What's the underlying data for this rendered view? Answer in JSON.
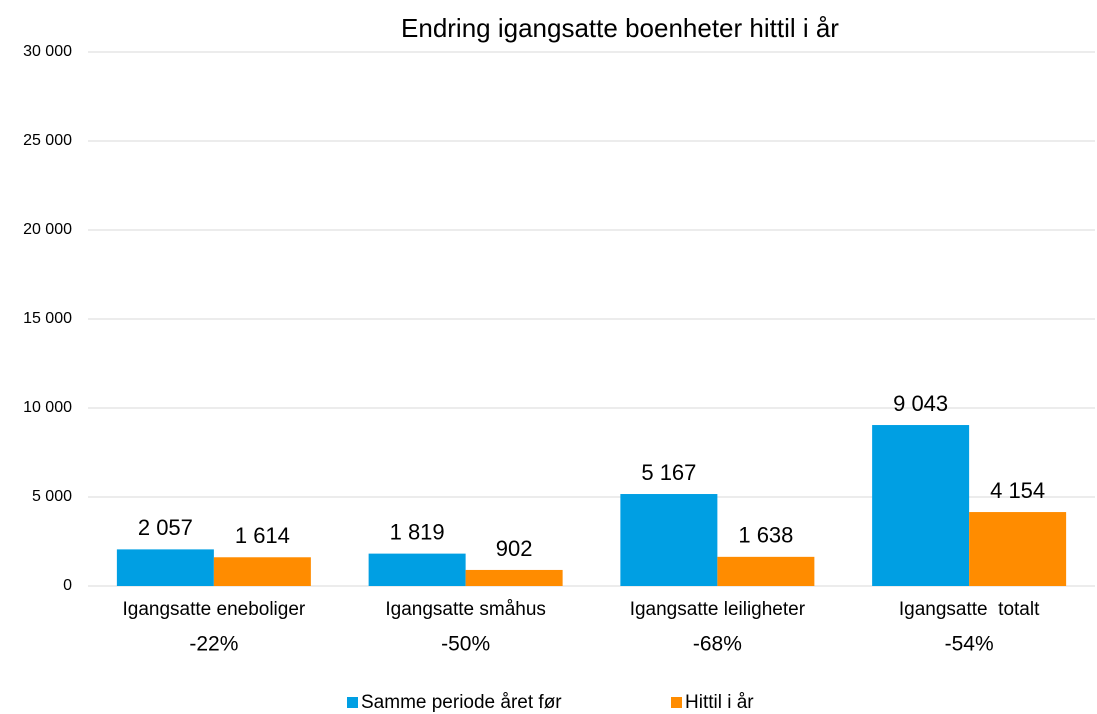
{
  "chart_data": {
    "type": "bar",
    "title": "Endring igangsatte boenheter hittil i år",
    "categories": [
      "Igangsatte eneboliger",
      "Igangsatte småhus",
      "Igangsatte leiligheter",
      "Igangsatte  totalt"
    ],
    "category_notes": [
      "-22%",
      "-50%",
      "-68%",
      "-54%"
    ],
    "series": [
      {
        "name": "Samme periode året før",
        "color": "#009fe3",
        "values": [
          2057,
          1819,
          5167,
          9043
        ],
        "value_labels": [
          "2 057",
          "1 819",
          "5 167",
          "9 043"
        ]
      },
      {
        "name": "Hittil i år",
        "color": "#ff8c00",
        "values": [
          1614,
          902,
          1638,
          4154
        ],
        "value_labels": [
          "1 614",
          "902",
          "1 638",
          "4 154"
        ]
      }
    ],
    "ylim": [
      0,
      30000
    ],
    "yticks": [
      0,
      {
        "value": 5000,
        "label": "5 000"
      },
      {
        "value": 10000,
        "label": "10 000"
      },
      {
        "value": 15000,
        "label": "15 000"
      },
      {
        "value": 20000,
        "label": "20 000"
      },
      {
        "value": 25000,
        "label": "25 000"
      },
      {
        "value": 30000,
        "label": "30 000"
      }
    ],
    "grid": true,
    "legend": "bottom"
  }
}
